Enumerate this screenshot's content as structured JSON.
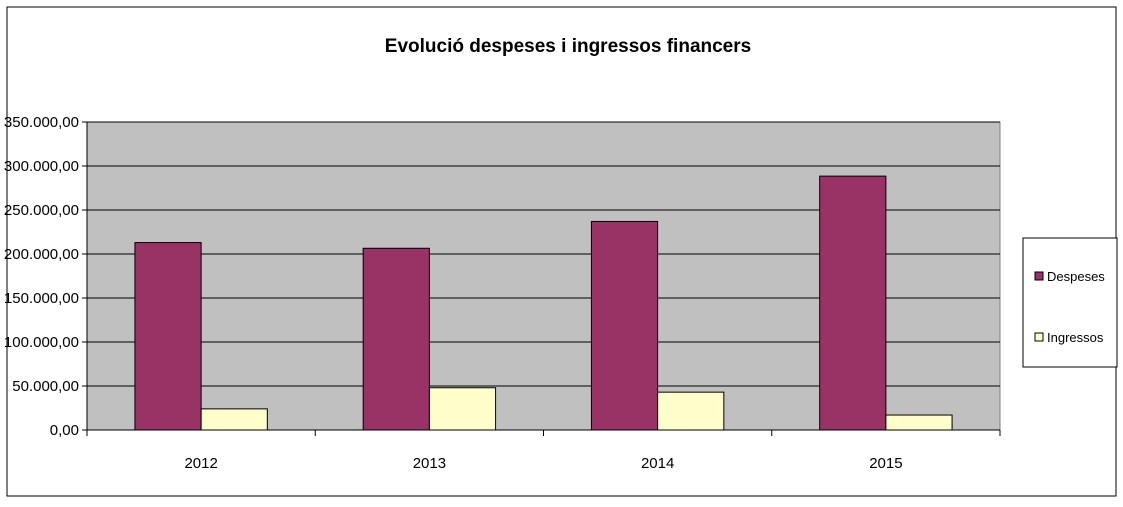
{
  "chart_data": {
    "type": "bar",
    "title": "Evolució despeses i ingressos financers",
    "categories": [
      "2012",
      "2013",
      "2014",
      "2015"
    ],
    "series": [
      {
        "name": "Despeses",
        "values": [
          213000,
          206500,
          237000,
          288500
        ],
        "color": "#993366"
      },
      {
        "name": "Ingressos",
        "values": [
          24000,
          48000,
          43000,
          17000
        ],
        "color": "#FFFFCC"
      }
    ],
    "ylim": [
      0,
      350000
    ],
    "yticks": [
      0,
      50000,
      100000,
      150000,
      200000,
      250000,
      300000,
      350000
    ],
    "ytick_labels": [
      "0,00",
      "50.000,00",
      "100.000,00",
      "150.000,00",
      "200.000,00",
      "250.000,00",
      "300.000,00",
      "350.000,00"
    ],
    "grid": true,
    "plot_background": "#C0C0C0",
    "legend_position": "right"
  }
}
